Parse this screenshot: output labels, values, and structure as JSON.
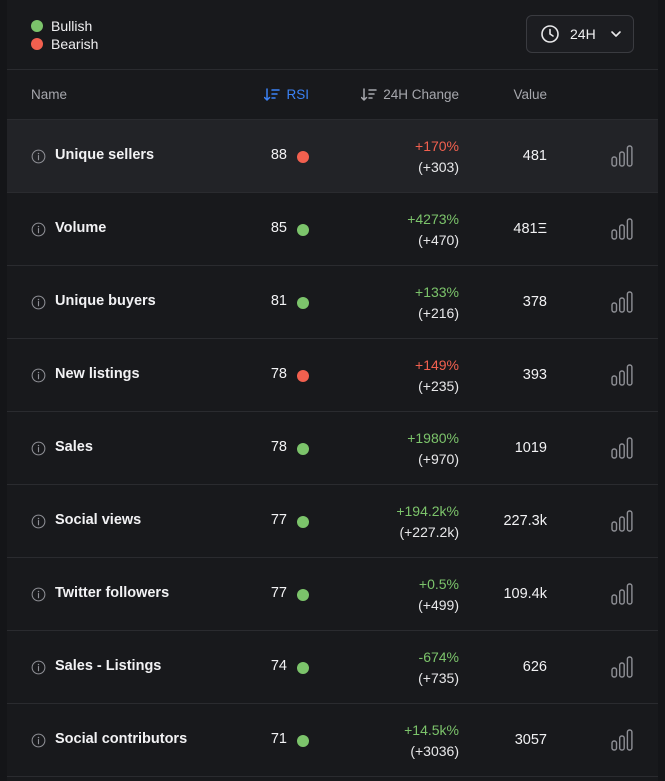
{
  "legend": {
    "bullish_label": "Bullish",
    "bearish_label": "Bearish",
    "bullish_color": "#7cc46b",
    "bearish_color": "#f2604f"
  },
  "timeframe": {
    "label": "24H",
    "icon": "clock-icon"
  },
  "columns": {
    "name": "Name",
    "rsi": "RSI",
    "change": "24H Change",
    "value": "Value"
  },
  "rows": [
    {
      "name": "Unique sellers",
      "rsi": "88",
      "signal": "bearish",
      "pct": "+170%",
      "pct_color": "negative",
      "abs": "(+303)",
      "value": "481"
    },
    {
      "name": "Volume",
      "rsi": "85",
      "signal": "bullish",
      "pct": "+4273%",
      "pct_color": "positive",
      "abs": "(+470)",
      "value": "481Ξ"
    },
    {
      "name": "Unique buyers",
      "rsi": "81",
      "signal": "bullish",
      "pct": "+133%",
      "pct_color": "positive",
      "abs": "(+216)",
      "value": "378"
    },
    {
      "name": "New listings",
      "rsi": "78",
      "signal": "bearish",
      "pct": "+149%",
      "pct_color": "negative",
      "abs": "(+235)",
      "value": "393"
    },
    {
      "name": "Sales",
      "rsi": "78",
      "signal": "bullish",
      "pct": "+1980%",
      "pct_color": "positive",
      "abs": "(+970)",
      "value": "1019"
    },
    {
      "name": "Social views",
      "rsi": "77",
      "signal": "bullish",
      "pct": "+194.2k%",
      "pct_color": "positive",
      "abs": "(+227.2k)",
      "value": "227.3k"
    },
    {
      "name": "Twitter followers",
      "rsi": "77",
      "signal": "bullish",
      "pct": "+0.5%",
      "pct_color": "positive",
      "abs": "(+499)",
      "value": "109.4k"
    },
    {
      "name": "Sales - Listings",
      "rsi": "74",
      "signal": "bullish",
      "pct": "-674%",
      "pct_color": "positive",
      "abs": "(+735)",
      "value": "626"
    },
    {
      "name": "Social contributors",
      "rsi": "71",
      "signal": "bullish",
      "pct": "+14.5k%",
      "pct_color": "positive",
      "abs": "(+3036)",
      "value": "3057"
    }
  ],
  "highlighted_row": 0
}
